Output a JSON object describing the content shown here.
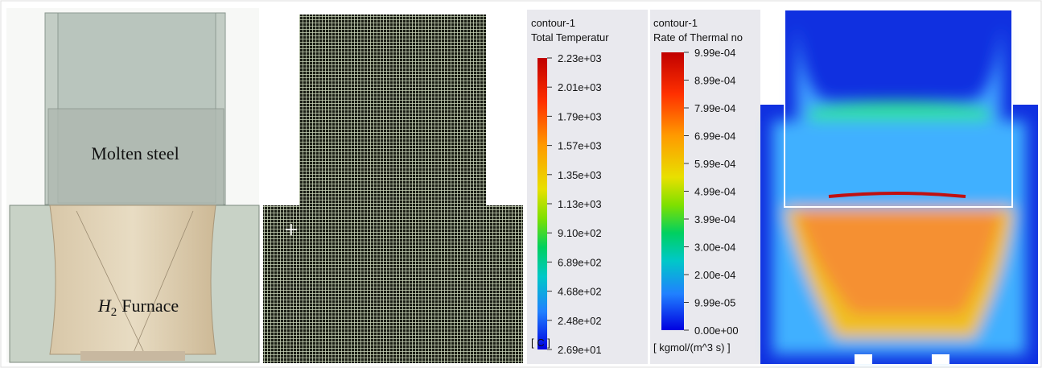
{
  "geometry_panel": {
    "molten_label": "Molten steel",
    "furnace_label": {
      "symbol": "H",
      "subscript": "2",
      "text": "Furnace"
    }
  },
  "colorbars": [
    {
      "title": "contour-1",
      "quantity": "Total Temperatur",
      "unit": "[ C ]",
      "ticks": [
        "2.23e+03",
        "2.01e+03",
        "1.79e+03",
        "1.57e+03",
        "1.35e+03",
        "1.13e+03",
        "9.10e+02",
        "6.89e+02",
        "4.68e+02",
        "2.48e+02",
        "2.69e+01"
      ]
    },
    {
      "title": "contour-1",
      "quantity": "Rate of Thermal no",
      "unit": "[ kgmol/(m^3 s) ]",
      "ticks": [
        "9.99e-04",
        "8.99e-04",
        "7.99e-04",
        "6.99e-04",
        "5.99e-04",
        "4.99e-04",
        "3.99e-04",
        "3.00e-04",
        "2.00e-04",
        "9.99e-05",
        "0.00e+00"
      ]
    }
  ]
}
